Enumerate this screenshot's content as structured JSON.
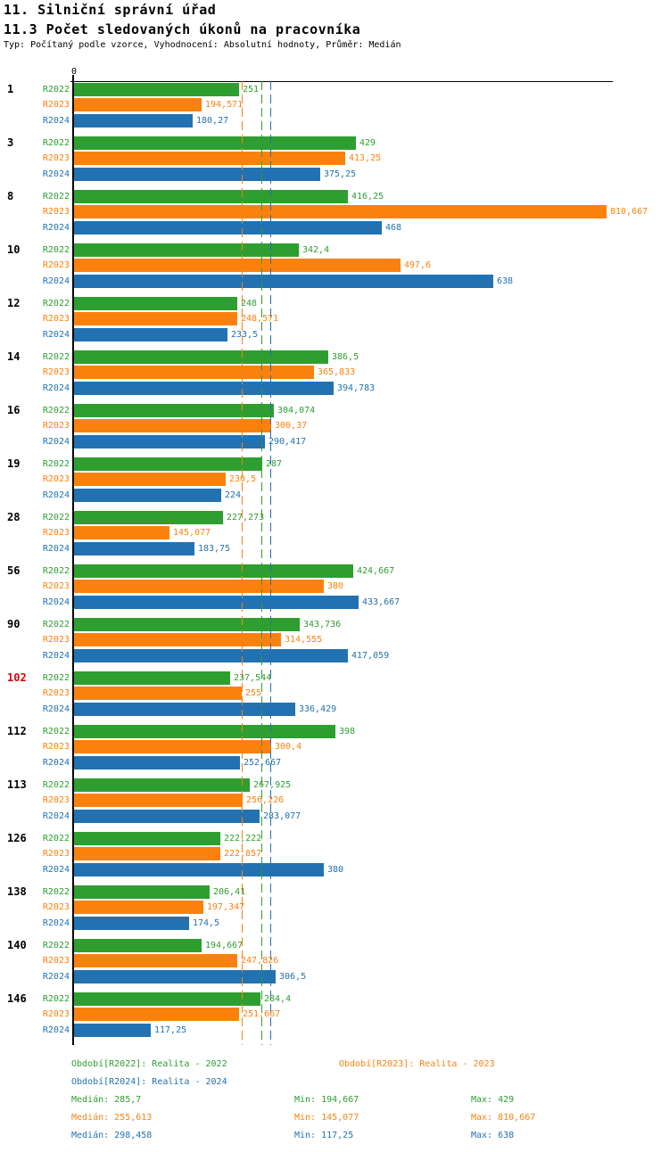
{
  "header": {
    "title1": "11. Silniční správní úřad",
    "title2": "11.3 Počet sledovaných úkonů na pracovníka",
    "subtitle": "Typ: Počítaný podle vzorce, Vyhodnocení: Absolutní hodnoty, Průměr: Medián"
  },
  "axis": {
    "origin_label": "0"
  },
  "colors": {
    "r2022": "#2E9E30",
    "r2023": "#FB810E",
    "r2024": "#2272B2",
    "highlight": "#DD0000",
    "axis": "#000000"
  },
  "chart_data": {
    "type": "bar",
    "orientation": "horizontal",
    "title": "11.3 Počet sledovaných úkonů na pracovníka",
    "categories": [
      "1",
      "3",
      "8",
      "10",
      "12",
      "14",
      "16",
      "19",
      "28",
      "56",
      "90",
      "102",
      "112",
      "113",
      "126",
      "138",
      "140",
      "146"
    ],
    "highlighted_categories": [
      "102"
    ],
    "xlim": [
      0,
      810.667
    ],
    "grid": "dashed median lines per series",
    "legend_position": "bottom",
    "series": [
      {
        "name": "R2022",
        "color_key": "r2022",
        "color": "#2E9E30",
        "median": 285.7,
        "values": [
          251,
          429,
          416.25,
          342.4,
          248,
          386.5,
          304.074,
          287,
          227.273,
          424.667,
          343.736,
          237.544,
          398,
          267.925,
          222.222,
          206.41,
          194.667,
          284.4
        ],
        "value_labels": [
          "251",
          "429",
          "416,25",
          "342,4",
          "248",
          "386,5",
          "304,074",
          "287",
          "227,273",
          "424,667",
          "343,736",
          "237,544",
          "398",
          "267,925",
          "222,222",
          "206,41",
          "194,667",
          "284,4"
        ]
      },
      {
        "name": "R2023",
        "color_key": "r2023",
        "color": "#FB810E",
        "median": 255.613,
        "values": [
          194.571,
          413.25,
          810.667,
          497.6,
          248.571,
          365.833,
          300.37,
          230.5,
          145.077,
          380,
          314.555,
          255,
          300.4,
          256.226,
          222.857,
          197.347,
          247.826,
          251.667
        ],
        "value_labels": [
          "194,571",
          "413,25",
          "810,667",
          "497,6",
          "248,571",
          "365,833",
          "300,37",
          "230,5",
          "145,077",
          "380",
          "314,555",
          "255",
          "300,4",
          "256,226",
          "222,857",
          "197,347",
          "247,826",
          "251,667"
        ]
      },
      {
        "name": "R2024",
        "color_key": "r2024",
        "color": "#2272B2",
        "median": 298.458,
        "values": [
          180.27,
          375.25,
          468,
          638,
          233.5,
          394.783,
          290.417,
          224,
          183.75,
          433.667,
          417.059,
          336.429,
          252.667,
          283.077,
          380,
          174.5,
          306.5,
          117.25
        ],
        "value_labels": [
          "180,27",
          "375,25",
          "468",
          "638",
          "233,5",
          "394,783",
          "290,417",
          "224",
          "183,75",
          "433,667",
          "417,059",
          "336,429",
          "252,667",
          "283,077",
          "380",
          "174,5",
          "306,5",
          "117,25"
        ]
      }
    ]
  },
  "legend": {
    "items": [
      {
        "label": "Období[R2022]: Realita - 2022",
        "color_key": "r2022",
        "row": 0,
        "col": 0
      },
      {
        "label": "Období[R2023]: Realita - 2023",
        "color_key": "r2023",
        "row": 0,
        "col": 1
      },
      {
        "label": "Období[R2024]: Realita - 2024",
        "color_key": "r2024",
        "row": 1,
        "col": 0
      }
    ]
  },
  "stats": {
    "rows": [
      {
        "color_key": "r2022",
        "median_label": "Medián: 285,7",
        "min_label": "Min: 194,667",
        "max_label": "Max: 429"
      },
      {
        "color_key": "r2023",
        "median_label": "Medián: 255,613",
        "min_label": "Min: 145,077",
        "max_label": "Max: 810,667"
      },
      {
        "color_key": "r2024",
        "median_label": "Medián: 298,458",
        "min_label": "Min: 117,25",
        "max_label": "Max: 638"
      }
    ]
  }
}
